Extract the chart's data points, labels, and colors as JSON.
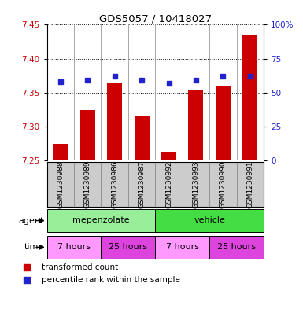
{
  "title": "GDS5057 / 10418027",
  "samples": [
    "GSM1230988",
    "GSM1230989",
    "GSM1230986",
    "GSM1230987",
    "GSM1230992",
    "GSM1230993",
    "GSM1230990",
    "GSM1230991"
  ],
  "transformed_counts": [
    7.275,
    7.325,
    7.365,
    7.315,
    7.263,
    7.355,
    7.36,
    7.435
  ],
  "percentile_ranks": [
    58,
    59,
    62,
    59,
    57,
    59,
    62,
    62
  ],
  "ylim_left": [
    7.25,
    7.45
  ],
  "yticks_left": [
    7.25,
    7.3,
    7.35,
    7.4,
    7.45
  ],
  "ylim_right": [
    0,
    100
  ],
  "yticks_right": [
    0,
    25,
    50,
    75,
    100
  ],
  "bar_color": "#CC0000",
  "dot_color": "#2222CC",
  "bar_bottom": 7.25,
  "agent_labels": [
    "mepenzolate",
    "vehicle"
  ],
  "agent_color_mepenzolate": "#99EE99",
  "agent_color_vehicle": "#44DD44",
  "time_labels": [
    "7 hours",
    "25 hours",
    "7 hours",
    "25 hours"
  ],
  "time_color_light": "#FF99FF",
  "time_color_bright": "#DD44DD",
  "legend_bar_label": "transformed count",
  "legend_dot_label": "percentile rank within the sample",
  "bg_color": "#FFFFFF",
  "label_bg": "#CCCCCC",
  "left_label_color": "#CC0000",
  "right_label_color": "#2222CC"
}
